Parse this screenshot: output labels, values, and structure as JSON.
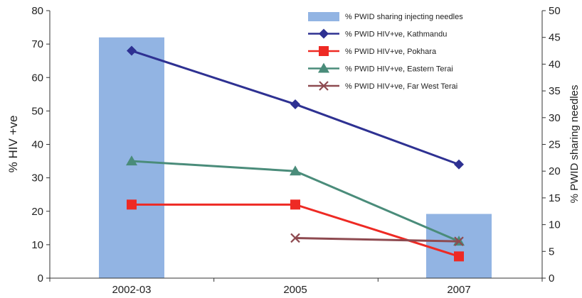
{
  "chart_data": {
    "type": "bar+line",
    "title": "",
    "categories": [
      "2002-03",
      "2005",
      "2007"
    ],
    "y_left": {
      "label": "% HIV +ve",
      "ylim": [
        0,
        80
      ],
      "ticks": [
        "0",
        "10",
        "20",
        "30",
        "40",
        "50",
        "60",
        "70",
        "80"
      ]
    },
    "y_right": {
      "label": "% PWID sharing needles",
      "ylim": [
        0,
        50
      ],
      "ticks": [
        "0",
        "5",
        "10",
        "15",
        "20",
        "25",
        "30",
        "35",
        "40",
        "45",
        "50"
      ]
    },
    "bar_series": {
      "name": "% PWID sharing injecting needles",
      "axis": "right",
      "color": "#92b4e3",
      "values": [
        45,
        null,
        12
      ]
    },
    "line_series": [
      {
        "name": "% PWID HIV+ve, Kathmandu",
        "color": "#2e3192",
        "marker": "diamond",
        "values": [
          68,
          52,
          34
        ]
      },
      {
        "name": "% PWID HIV+ve, Pokhara",
        "color": "#ee2a24",
        "marker": "square",
        "values": [
          22,
          22,
          6.5
        ]
      },
      {
        "name": "% PWID HIV+ve, Eastern Terai",
        "color": "#4a8c7a",
        "marker": "triangle",
        "values": [
          35,
          32,
          11
        ]
      },
      {
        "name": "% PWID HIV+ve, Far West Terai",
        "color": "#8e4a50",
        "marker": "x",
        "values": [
          null,
          12,
          11
        ]
      }
    ],
    "grid": false,
    "legend_position": "top-right"
  }
}
